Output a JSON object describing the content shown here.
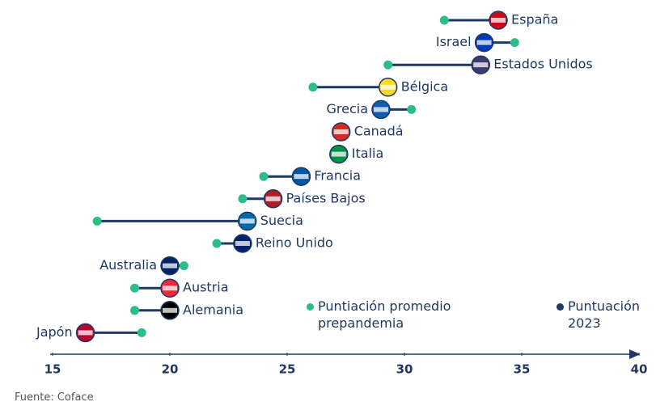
{
  "chart_data": {
    "type": "dumbbell",
    "categories": [
      "España",
      "Israel",
      "Estados Unidos",
      "Bélgica",
      "Grecia",
      "Canadá",
      "Italia",
      "Francia",
      "Países Bajos",
      "Suecia",
      "Reino Unido",
      "Australia",
      "Austria",
      "Alemania",
      "Japón"
    ],
    "series": [
      {
        "name": "Puntiación promedio prepandemia",
        "color": "#2dbd8a",
        "values": [
          31.7,
          34.7,
          29.3,
          26.1,
          30.3,
          27.3,
          27.2,
          24.0,
          23.1,
          16.9,
          22.0,
          20.6,
          18.5,
          18.5,
          18.8
        ]
      },
      {
        "name": "Puntuación 2023",
        "color": "#1f3864",
        "values": [
          34.0,
          33.4,
          33.25,
          29.3,
          29.0,
          27.3,
          27.2,
          25.6,
          24.4,
          23.3,
          23.1,
          20.0,
          20.0,
          20.0,
          16.4
        ]
      }
    ],
    "flag_colors": [
      "#c60b1e",
      "#0038b8",
      "#3c3b6e",
      "#fdda24",
      "#0d5eaf",
      "#d52b1e",
      "#009246",
      "#0055a4",
      "#ae1c28",
      "#006aa7",
      "#012169",
      "#012169",
      "#ed2939",
      "#000000",
      "#bc002d"
    ],
    "xlim": [
      15,
      40
    ],
    "xticks": [
      15,
      20,
      25,
      30,
      35,
      40
    ],
    "source": "Fuente: Coface"
  }
}
